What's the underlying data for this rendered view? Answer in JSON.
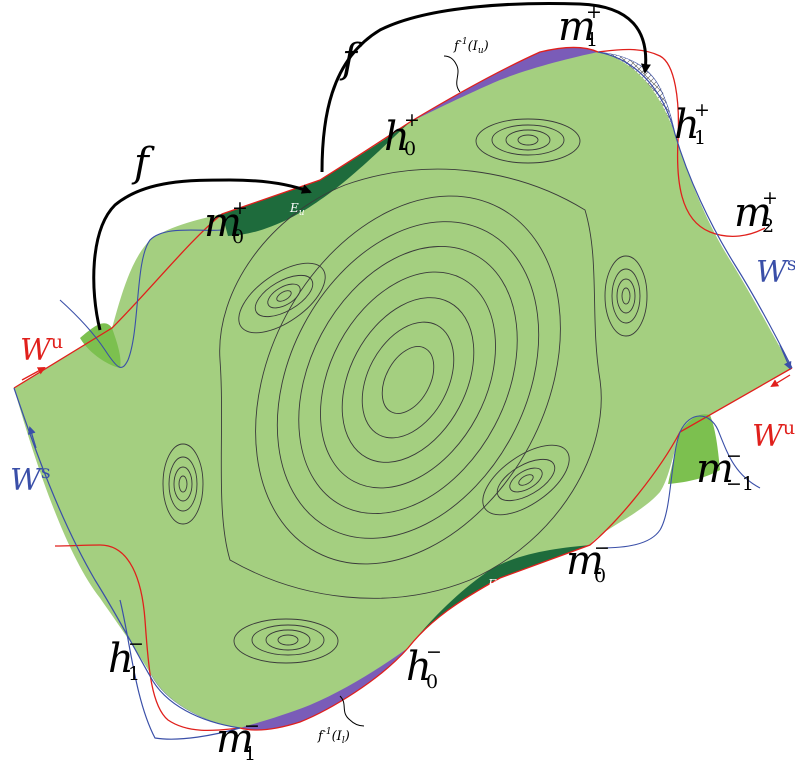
{
  "colors": {
    "region_fill": "#a4cf80",
    "lobe_green": "#7cc04f",
    "lobe_dark": "#1e6b3c",
    "lobe_purple": "#7a5cb8",
    "stable_manifold": "#3a4fa8",
    "unstable_manifold": "#e0201c",
    "contour": "#3a3a3a",
    "arrow": "#000000"
  },
  "map_label": "f",
  "manifolds": {
    "ws_base": "W",
    "ws_sup": "s",
    "wu_base": "W",
    "wu_sup": "u"
  },
  "points": {
    "m0p": {
      "base": "m",
      "sub": "0",
      "sup": "+"
    },
    "h0p": {
      "base": "h",
      "sub": "0",
      "sup": "+"
    },
    "m1p": {
      "base": "m",
      "sub": "1",
      "sup": "+"
    },
    "h1p": {
      "base": "h",
      "sub": "1",
      "sup": "+"
    },
    "m2p": {
      "base": "m",
      "sub": "2",
      "sup": "+"
    },
    "mm1n": {
      "base": "m",
      "sub": "−1",
      "sup": "−"
    },
    "m0n": {
      "base": "m",
      "sub": "0",
      "sup": "−"
    },
    "h0n": {
      "base": "h",
      "sub": "0",
      "sup": "−"
    },
    "h1n": {
      "base": "h",
      "sub": "1",
      "sup": "−"
    },
    "m1n": {
      "base": "m",
      "sub": "1",
      "sup": "−"
    }
  },
  "regions": {
    "eu_base": "E",
    "eu_sub": "u",
    "el_base": "E",
    "el_sub": "l",
    "finv_iu": "f",
    "finv_iu_sup": "-1",
    "finv_iu_arg": "(I",
    "finv_iu_arg_sub": "u",
    "finv_il": "f",
    "finv_il_sup": "-1",
    "finv_il_arg": "(I",
    "finv_il_arg_sub": "l",
    "close_paren": ")"
  }
}
